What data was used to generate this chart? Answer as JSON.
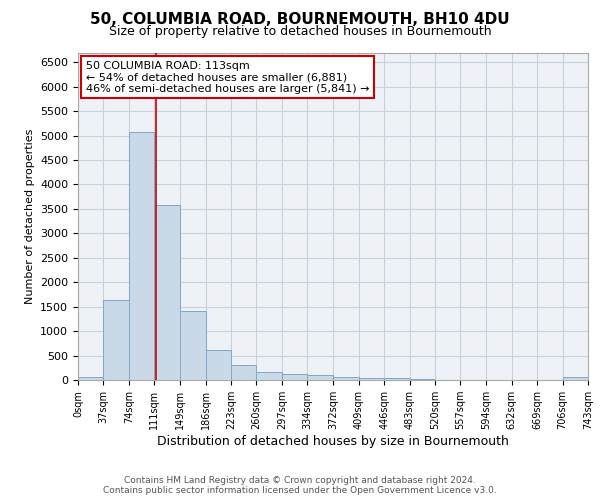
{
  "title": "50, COLUMBIA ROAD, BOURNEMOUTH, BH10 4DU",
  "subtitle": "Size of property relative to detached houses in Bournemouth",
  "xlabel": "Distribution of detached houses by size in Bournemouth",
  "ylabel": "Number of detached properties",
  "footer_line1": "Contains HM Land Registry data © Crown copyright and database right 2024.",
  "footer_line2": "Contains public sector information licensed under the Open Government Licence v3.0.",
  "bar_left_edges": [
    0,
    37,
    74,
    111,
    149,
    186,
    223,
    260,
    297,
    334,
    372,
    409,
    446,
    483,
    520,
    557,
    594,
    632,
    669,
    706
  ],
  "bar_heights": [
    60,
    1630,
    5080,
    3580,
    1410,
    610,
    300,
    155,
    130,
    95,
    55,
    50,
    45,
    15,
    5,
    0,
    0,
    0,
    0,
    60
  ],
  "bin_width": 37,
  "bar_color": "#c9d9e8",
  "bar_edge_color": "#7fa8c9",
  "grid_color": "#c8d0dc",
  "property_size": 113,
  "property_line_color": "#cc0000",
  "annotation_text_line1": "50 COLUMBIA ROAD: 113sqm",
  "annotation_text_line2": "← 54% of detached houses are smaller (6,881)",
  "annotation_text_line3": "46% of semi-detached houses are larger (5,841) →",
  "annotation_box_color": "#ffffff",
  "annotation_box_edge_color": "#cc0000",
  "xlim": [
    0,
    743
  ],
  "ylim": [
    0,
    6700
  ],
  "yticks": [
    0,
    500,
    1000,
    1500,
    2000,
    2500,
    3000,
    3500,
    4000,
    4500,
    5000,
    5500,
    6000,
    6500
  ],
  "xtick_labels": [
    "0sqm",
    "37sqm",
    "74sqm",
    "111sqm",
    "149sqm",
    "186sqm",
    "223sqm",
    "260sqm",
    "297sqm",
    "334sqm",
    "372sqm",
    "409sqm",
    "446sqm",
    "483sqm",
    "520sqm",
    "557sqm",
    "594sqm",
    "632sqm",
    "669sqm",
    "706sqm",
    "743sqm"
  ],
  "xtick_positions": [
    0,
    37,
    74,
    111,
    149,
    186,
    223,
    260,
    297,
    334,
    372,
    409,
    446,
    483,
    520,
    557,
    594,
    632,
    669,
    706,
    743
  ],
  "background_color": "#eef2f7",
  "figure_bg_color": "#ffffff",
  "title_fontsize": 11,
  "subtitle_fontsize": 9,
  "ylabel_fontsize": 8,
  "xlabel_fontsize": 9,
  "ytick_fontsize": 8,
  "xtick_fontsize": 7,
  "footer_fontsize": 6.5,
  "annotation_fontsize": 8
}
